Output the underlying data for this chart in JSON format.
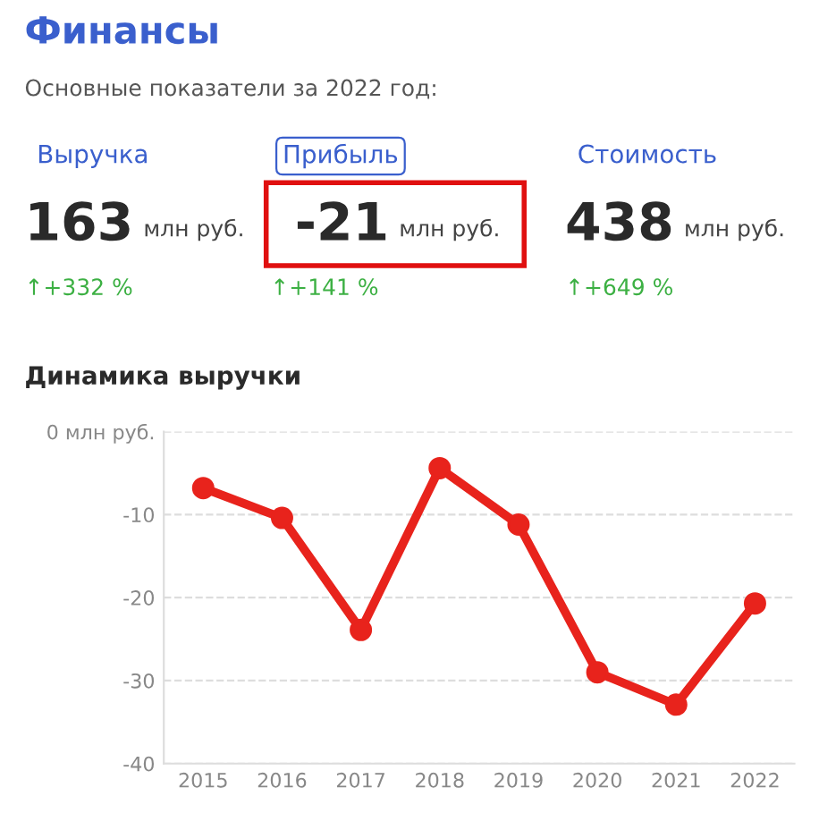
{
  "chart_data": [
    {
      "type": "other",
      "title": "Финансы",
      "subtitle": "Основные показатели за 2022 год:",
      "annotations": [
        "Выручка",
        "163",
        "млн руб.",
        "↑+332 %",
        "Прибыль",
        "-21",
        "млн руб.",
        "↑+141 %",
        "Стоимость",
        "438",
        "млн руб.",
        "↑+649 %"
      ]
    },
    {
      "type": "line",
      "title": "Динамика выручки",
      "categories": [
        "2015",
        "2016",
        "2017",
        "2018",
        "2019",
        "2020",
        "2021",
        "2022"
      ],
      "series": [
        {
          "color": "#e8231c",
          "values": [
            -6.8,
            -10.4,
            -23.9,
            -4.4,
            -11.2,
            -29.0,
            -32.9,
            -20.7
          ]
        }
      ],
      "ylim": [
        -40,
        0
      ],
      "yticks": [
        {
          "value": 0,
          "label": "0 млн руб."
        },
        -10,
        -20,
        -30,
        -40
      ],
      "grid": "y",
      "marker": "circle",
      "line_style": "solid"
    }
  ]
}
